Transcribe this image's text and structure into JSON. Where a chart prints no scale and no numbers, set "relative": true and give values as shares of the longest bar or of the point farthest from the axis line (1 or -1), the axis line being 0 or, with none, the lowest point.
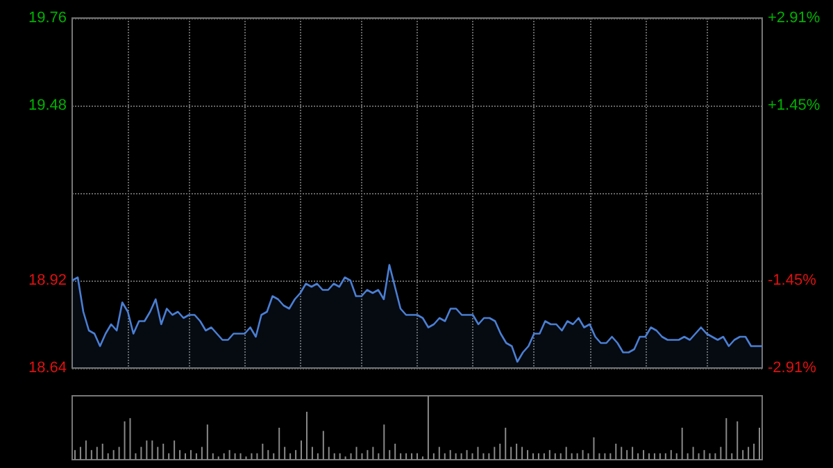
{
  "chart_data": [
    {
      "type": "area",
      "categories": [
        null,
        null,
        null,
        null,
        null,
        null,
        null,
        null,
        null,
        null,
        null,
        null,
        null,
        null,
        null,
        null,
        null,
        null,
        null,
        null,
        null,
        null,
        null,
        null,
        null,
        null,
        null,
        null,
        null,
        null,
        null,
        null,
        null,
        null,
        null,
        null,
        null,
        null,
        null,
        null,
        null,
        null,
        null,
        null,
        null,
        null,
        null,
        null,
        null,
        null,
        null,
        null,
        null,
        null,
        null,
        null,
        null,
        null,
        null,
        null,
        null,
        null,
        null,
        null,
        null,
        null,
        null,
        null,
        null,
        null,
        null,
        null,
        null,
        null,
        null,
        null,
        null,
        null,
        null,
        null,
        null,
        null,
        null,
        null,
        null,
        null,
        null,
        null,
        null,
        null,
        null,
        null,
        null,
        null,
        null,
        null,
        null,
        null,
        null,
        null,
        null,
        null,
        null,
        null,
        null,
        null,
        null,
        null,
        null,
        null,
        null,
        null,
        null,
        null,
        null,
        null,
        null,
        null,
        null,
        null,
        null,
        null,
        null,
        null,
        null
      ],
      "series": [
        {
          "color": "#4a7fd4",
          "values": [
            18.92,
            18.93,
            18.82,
            18.76,
            18.75,
            18.71,
            18.75,
            18.78,
            18.76,
            18.85,
            18.82,
            18.75,
            18.79,
            18.79,
            18.82,
            18.86,
            18.78,
            18.83,
            18.81,
            18.82,
            18.8,
            18.81,
            18.81,
            18.79,
            18.76,
            18.77,
            18.75,
            18.73,
            18.73,
            18.75,
            18.75,
            18.75,
            18.77,
            18.74,
            18.81,
            18.82,
            18.87,
            18.86,
            18.84,
            18.83,
            18.86,
            18.88,
            18.91,
            18.9,
            18.91,
            18.89,
            18.89,
            18.91,
            18.9,
            18.93,
            18.92,
            18.87,
            18.87,
            18.89,
            18.88,
            18.89,
            18.86,
            18.97,
            18.9,
            18.83,
            18.81,
            18.81,
            18.81,
            18.8,
            18.77,
            18.78,
            18.8,
            18.79,
            18.83,
            18.83,
            18.81,
            18.81,
            18.81,
            18.78,
            18.8,
            18.8,
            18.79,
            18.75,
            18.72,
            18.71,
            18.66,
            18.69,
            18.71,
            18.75,
            18.75,
            18.79,
            18.78,
            18.78,
            18.76,
            18.79,
            18.78,
            18.8,
            18.77,
            18.78,
            18.74,
            18.72,
            18.72,
            18.74,
            18.72,
            18.69,
            18.69,
            18.7,
            18.74,
            18.74,
            18.77,
            18.76,
            18.74,
            18.73,
            18.73,
            18.73,
            18.74,
            18.73,
            18.75,
            18.77,
            18.75,
            18.74,
            18.73,
            18.74,
            18.71,
            18.73,
            18.74,
            18.74,
            18.71,
            18.71,
            18.71
          ]
        }
      ],
      "ylim": [
        18.64,
        19.76
      ],
      "yticks": [
        18.64,
        18.92,
        {
          "value": 19.2,
          "label": null
        },
        19.48,
        19.76
      ],
      "y2lim": [
        -2.91,
        2.91
      ],
      "y2ticks": [
        {
          "value": -2.91,
          "label": "-2.91%"
        },
        {
          "value": -1.45,
          "label": "-1.45%"
        },
        {
          "value": 0,
          "label": null
        },
        {
          "value": 1.45,
          "label": "+1.45%"
        },
        {
          "value": 2.91,
          "label": "+2.91%"
        }
      ],
      "grid": true,
      "line_style": "solid"
    },
    {
      "type": "bar",
      "relative": true,
      "categories": [
        null,
        null,
        null,
        null,
        null,
        null,
        null,
        null,
        null,
        null,
        null,
        null,
        null,
        null,
        null,
        null,
        null,
        null,
        null,
        null,
        null,
        null,
        null,
        null,
        null,
        null,
        null,
        null,
        null,
        null,
        null,
        null,
        null,
        null,
        null,
        null,
        null,
        null,
        null,
        null,
        null,
        null,
        null,
        null,
        null,
        null,
        null,
        null,
        null,
        null,
        null,
        null,
        null,
        null,
        null,
        null,
        null,
        null,
        null,
        null,
        null,
        null,
        null,
        null,
        null,
        null,
        null,
        null,
        null,
        null,
        null,
        null,
        null,
        null,
        null,
        null,
        null,
        null,
        null,
        null,
        null,
        null,
        null,
        null,
        null,
        null,
        null,
        null,
        null,
        null,
        null,
        null,
        null,
        null,
        null,
        null,
        null,
        null,
        null,
        null,
        null,
        null,
        null,
        null,
        null,
        null,
        null,
        null,
        null,
        null,
        null,
        null,
        null,
        null,
        null,
        null,
        null,
        null,
        null,
        null,
        null,
        null,
        null,
        null,
        null
      ],
      "series": [
        {
          "color": "#8a8a8a",
          "values": [
            0.15,
            0.2,
            0.3,
            0.15,
            0.2,
            0.25,
            0.1,
            0.15,
            0.2,
            0.6,
            0.65,
            0.1,
            0.2,
            0.3,
            0.3,
            0.2,
            0.25,
            0.1,
            0.3,
            0.15,
            0.1,
            0.15,
            0.1,
            0.2,
            0.55,
            0.1,
            0.05,
            0.1,
            0.15,
            0.1,
            0.1,
            0.05,
            0.1,
            0.1,
            0.25,
            0.15,
            0.1,
            0.5,
            0.2,
            0.1,
            0.15,
            0.3,
            0.75,
            0.2,
            0.1,
            0.45,
            0.2,
            0.1,
            0.1,
            0.05,
            0.1,
            0.2,
            0.1,
            0.15,
            0.2,
            0.1,
            0.55,
            0.15,
            0.25,
            0.1,
            0.1,
            0.1,
            0.1,
            0.05,
            1,
            0.1,
            0.2,
            0.1,
            0.15,
            0.1,
            0.1,
            0.15,
            0.1,
            0.2,
            0.1,
            0.1,
            0.2,
            0.25,
            0.5,
            0.2,
            0.25,
            0.2,
            0.15,
            0.1,
            0.1,
            0.1,
            0.15,
            0.1,
            0.1,
            0.2,
            0.1,
            0.1,
            0.15,
            0.1,
            0.35,
            0.1,
            0.1,
            0.1,
            0.25,
            0.2,
            0.15,
            0.2,
            0.1,
            0.15,
            0.1,
            0.1,
            0.1,
            0.1,
            0.15,
            0.1,
            0.5,
            0.1,
            0.2,
            0.1,
            0.15,
            0.1,
            0.1,
            0.2,
            0.65,
            0.1,
            0.6,
            0.15,
            0.2,
            0.25,
            0.5
          ]
        }
      ],
      "grid": false
    }
  ]
}
